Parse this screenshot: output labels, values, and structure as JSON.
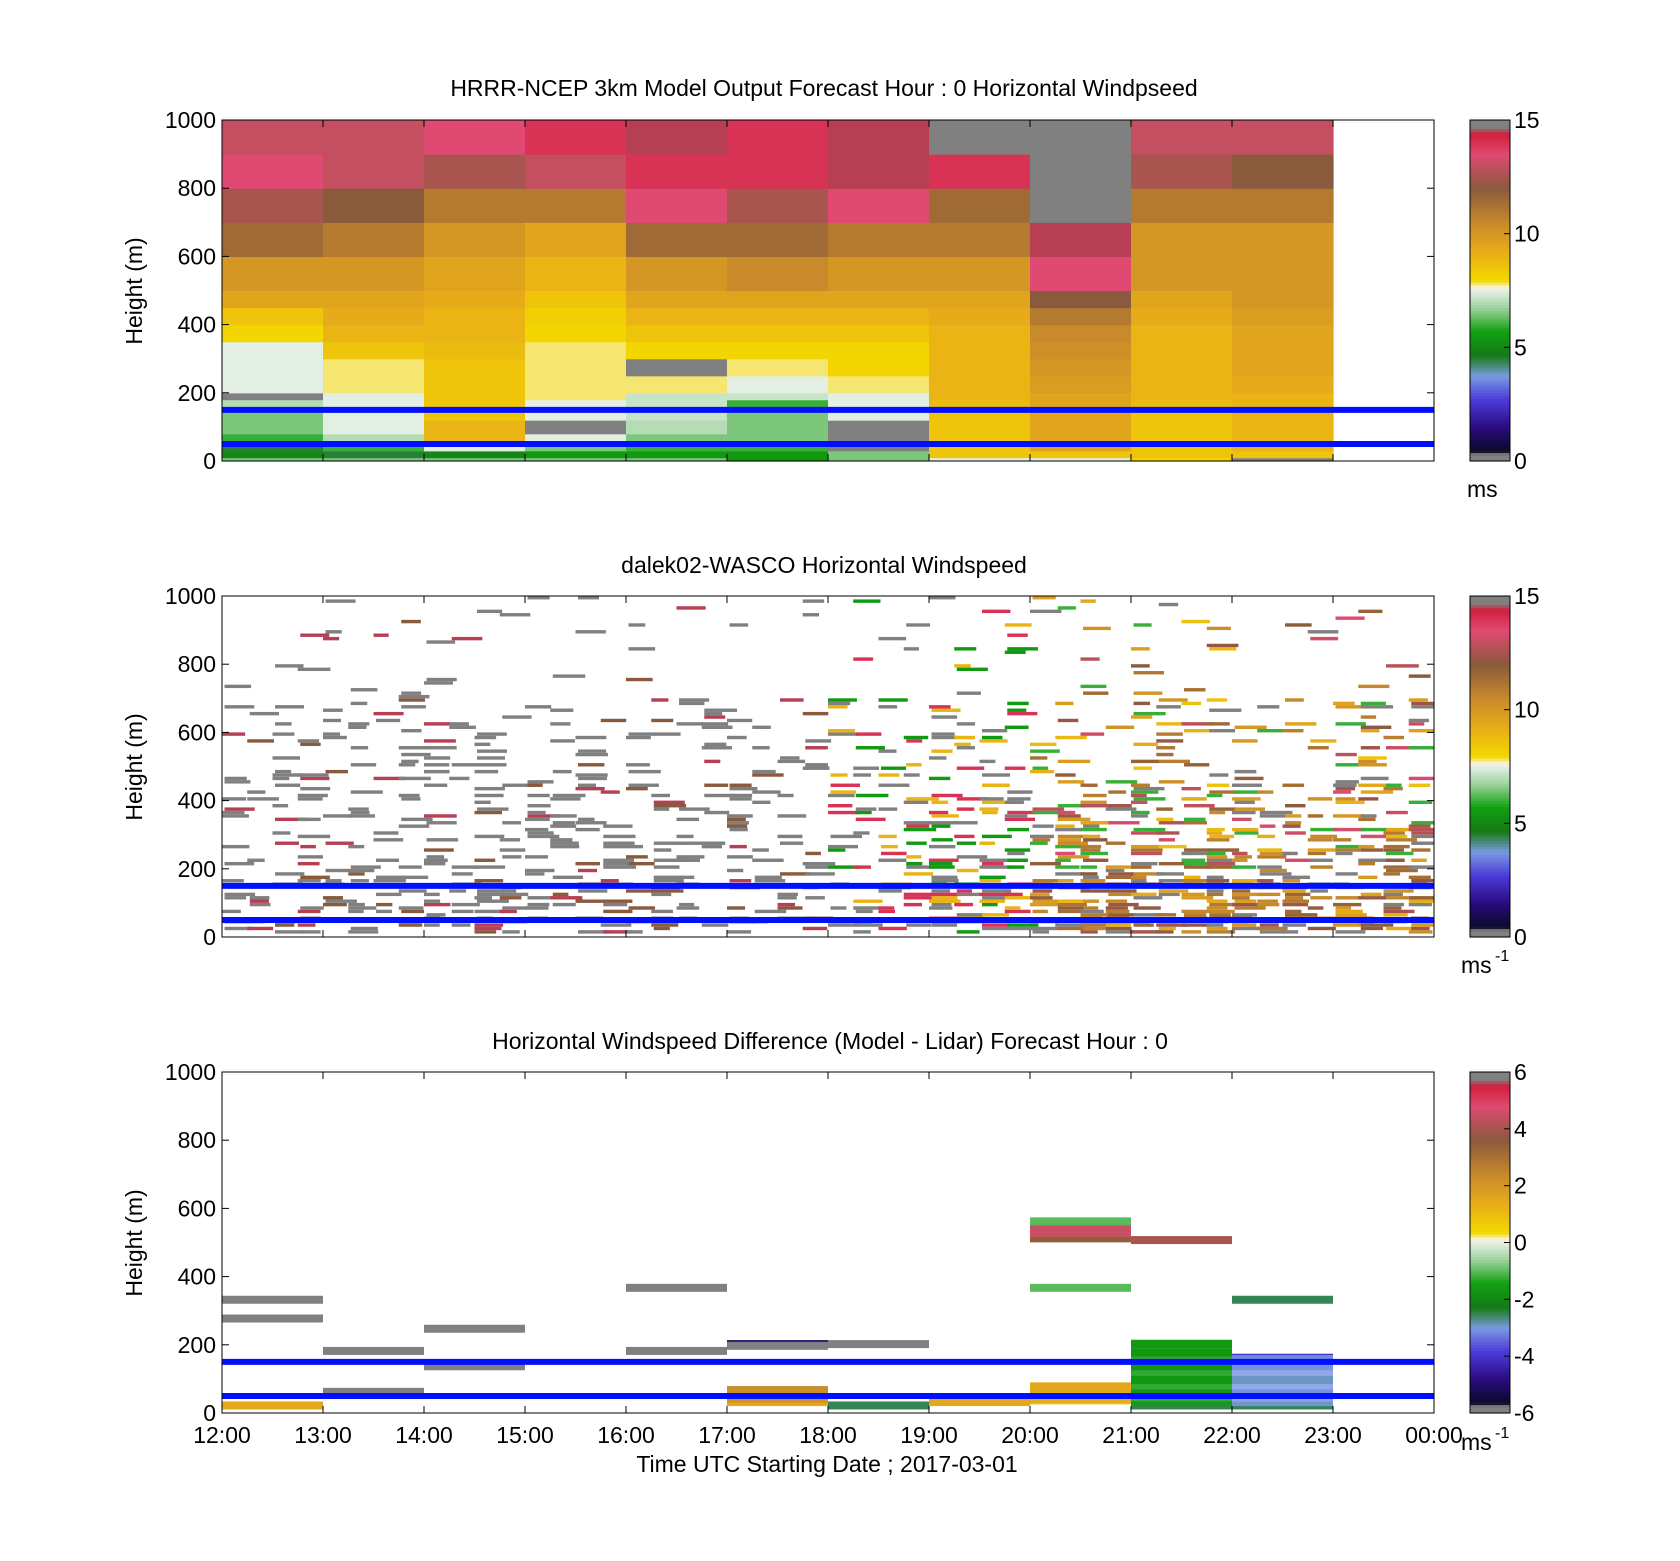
{
  "colors": {
    "band_line": "#0010ff",
    "frame": "#000000",
    "missing_gray": "#808080"
  },
  "colormaps": {
    "speed": {
      "stops": [
        [
          0.0,
          "#808080"
        ],
        [
          0.02,
          "#808080"
        ],
        [
          0.03,
          "#0a0a2a"
        ],
        [
          0.1,
          "#2a0a80"
        ],
        [
          0.18,
          "#4a3ad8"
        ],
        [
          0.25,
          "#7a9ae0"
        ],
        [
          0.31,
          "#167a16"
        ],
        [
          0.38,
          "#10a010"
        ],
        [
          0.45,
          "#9ed39e"
        ],
        [
          0.5,
          "#e4efe4"
        ],
        [
          0.51,
          "#f7f3e4"
        ],
        [
          0.53,
          "#f3d800"
        ],
        [
          0.62,
          "#e6aa1a"
        ],
        [
          0.7,
          "#c88a2a"
        ],
        [
          0.8,
          "#8a5a3c"
        ],
        [
          0.9,
          "#e04a72"
        ],
        [
          0.96,
          "#d21f3c"
        ],
        [
          0.98,
          "#808080"
        ],
        [
          1.0,
          "#808080"
        ]
      ]
    }
  },
  "panels": [
    {
      "title": "HRRR-NCEP 3km Model Output   Forecast Hour : 0 Horizontal Windpseed",
      "ylabel": "Height (m)",
      "yticks": [
        "0",
        "200",
        "400",
        "600",
        "800",
        "1000"
      ],
      "colorbar": {
        "ticks": [
          "0",
          "5",
          "10",
          "15"
        ],
        "min": 0,
        "max": 15,
        "unit": "ms",
        "unit_sup": ""
      },
      "bands": [
        50,
        150
      ]
    },
    {
      "title": "dalek02-WASCO  Horizontal Windspeed",
      "ylabel": "Height (m)",
      "yticks": [
        "0",
        "200",
        "400",
        "600",
        "800",
        "1000"
      ],
      "colorbar": {
        "ticks": [
          "0",
          "5",
          "10",
          "15"
        ],
        "min": 0,
        "max": 15,
        "unit": "ms",
        "unit_sup": "-1"
      },
      "bands": [
        50,
        150
      ]
    },
    {
      "title": "Horizontal Windspeed Difference (Model - Lidar) Forecast Hour : 0",
      "ylabel": "Height (m)",
      "yticks": [
        "0",
        "200",
        "400",
        "600",
        "800",
        "1000"
      ],
      "colorbar": {
        "ticks": [
          "-6",
          "-4",
          "-2",
          "0",
          "2",
          "4",
          "6"
        ],
        "min": -6,
        "max": 6,
        "unit": "ms",
        "unit_sup": "-1"
      },
      "bands": [
        50,
        150
      ]
    }
  ],
  "xaxis": {
    "ticks": [
      "12:00",
      "13:00",
      "14:00",
      "15:00",
      "16:00",
      "17:00",
      "18:00",
      "19:00",
      "20:00",
      "21:00",
      "22:00",
      "23:00",
      "00:00"
    ],
    "label": "Time UTC  Starting Date ; 2017-03-01"
  },
  "chart_data": [
    {
      "type": "heatmap",
      "title": "HRRR-NCEP 3km Model Output   Forecast Hour : 0 Horizontal Windpseed",
      "ylabel": "Height (m)",
      "x_hours": [
        "12:00",
        "13:00",
        "14:00",
        "15:00",
        "16:00",
        "17:00",
        "18:00",
        "19:00",
        "20:00",
        "21:00",
        "22:00"
      ],
      "height_levels_m": [
        0,
        10,
        30,
        50,
        80,
        120,
        150,
        180,
        200,
        250,
        300,
        350,
        400,
        450,
        500,
        600,
        700,
        800,
        900
      ],
      "values_ms": [
        [
          6.5,
          5,
          4.5,
          6,
          6.5,
          6.5,
          7,
          0,
          7.5,
          7.5,
          7.5,
          8,
          8.5,
          9.5,
          10,
          11.5,
          12.5,
          13.5,
          13
        ],
        [
          6.5,
          4.5,
          6,
          7,
          7.5,
          7.5,
          7.5,
          7.5,
          7.8,
          7.8,
          8.5,
          9,
          9.3,
          9.5,
          10,
          11,
          12,
          13,
          13
        ],
        [
          6.5,
          5,
          7.5,
          9,
          9,
          8.5,
          8.5,
          8.5,
          8.5,
          8.5,
          8.8,
          9,
          9,
          9.3,
          9.5,
          10,
          11,
          12.5,
          13.5
        ],
        [
          6.5,
          5.5,
          6.5,
          7.5,
          0,
          7.5,
          7.5,
          7.8,
          7.8,
          7.8,
          7.8,
          8,
          8.2,
          8.5,
          9,
          9.5,
          11,
          13,
          14
        ],
        [
          6.5,
          5.5,
          6,
          6.5,
          7,
          7.2,
          7.2,
          7.2,
          7.8,
          0,
          8,
          8.5,
          9,
          9.5,
          10,
          11.5,
          13.5,
          14,
          14.5
        ],
        [
          5.5,
          5.5,
          6,
          6.5,
          6.5,
          6.5,
          6,
          7.2,
          7.5,
          7.8,
          8,
          8.5,
          9,
          9.5,
          10.5,
          11.5,
          12.5,
          14,
          14
        ],
        [
          6.5,
          6.5,
          0,
          0,
          0,
          7.5,
          7.5,
          7.5,
          7.8,
          8,
          8,
          8.5,
          9,
          9.5,
          10,
          11,
          13.5,
          14.5,
          14.5
        ],
        [
          7.5,
          8.5,
          8.5,
          8.5,
          8.5,
          8.5,
          8.8,
          9,
          9,
          9,
          9,
          9,
          9.3,
          9.5,
          10,
          11,
          11.5,
          14,
          0
        ],
        [
          7.5,
          8.5,
          9.5,
          9.5,
          9.5,
          9.5,
          9.5,
          9.5,
          9.8,
          10,
          10.3,
          10.5,
          11,
          12,
          13.5,
          14.5,
          0,
          0,
          0
        ],
        [
          8,
          8.5,
          8.5,
          8.5,
          8.5,
          8.5,
          8.8,
          9,
          9,
          9,
          9,
          9,
          9.3,
          9.5,
          10,
          10,
          11,
          12.5,
          13
        ],
        [
          0,
          8.5,
          9,
          9,
          9,
          9,
          9,
          9,
          9.3,
          9.5,
          9.5,
          9.5,
          9.8,
          10,
          10,
          10,
          11,
          12,
          13
        ]
      ]
    },
    {
      "type": "heatmap",
      "title": "dalek02-WASCO  Horizontal Windspeed",
      "ylabel": "Height (m)",
      "x_range": [
        "12:00",
        "00:00"
      ],
      "y_range_m": [
        0,
        1000
      ],
      "description_values": "sparse lidar retrievals 0-1000 m; gray = speeds above 15 ms-1 concentrated 12:00-18:00 below 700 m; 8-11 ms-1 (yellow-brown) below 400 m after 19:00",
      "colorbar_range": [
        0,
        15
      ]
    },
    {
      "type": "heatmap",
      "title": "Horizontal Windspeed Difference (Model - Lidar) Forecast Hour : 0",
      "ylabel": "Height (m)",
      "colorbar_range": [
        -6,
        6
      ],
      "segments": [
        {
          "x0": "12:00",
          "x1": "13:00",
          "y_m": 25,
          "value": 1.5
        },
        {
          "x0": "12:00",
          "x1": "13:00",
          "y_m": 280,
          "value": 6
        },
        {
          "x0": "12:00",
          "x1": "13:00",
          "y_m": 335,
          "value": 6
        },
        {
          "x0": "13:00",
          "x1": "14:00",
          "y_m": 65,
          "value": 6
        },
        {
          "x0": "13:00",
          "x1": "14:00",
          "y_m": 185,
          "value": 6
        },
        {
          "x0": "14:00",
          "x1": "15:00",
          "y_m": 140,
          "value": 6
        },
        {
          "x0": "14:00",
          "x1": "15:00",
          "y_m": 250,
          "value": 6
        },
        {
          "x0": "16:00",
          "x1": "17:00",
          "y_m": 185,
          "value": 6
        },
        {
          "x0": "16:00",
          "x1": "17:00",
          "y_m": 370,
          "value": 6
        },
        {
          "x0": "17:00",
          "x1": "18:00",
          "y_m": 205,
          "value": -5
        },
        {
          "x0": "17:00",
          "x1": "18:00",
          "y_m": 200,
          "value": 6
        },
        {
          "x0": "18:00",
          "x1": "19:00",
          "y_m": 205,
          "value": 6
        },
        {
          "x0": "17:00",
          "x1": "18:00",
          "y_m": 35,
          "value": 1.5
        },
        {
          "x0": "17:00",
          "x1": "18:00",
          "y_m": 55,
          "value": 2
        },
        {
          "x0": "17:00",
          "x1": "18:00",
          "y_m": 70,
          "value": 2.5
        },
        {
          "x0": "18:00",
          "x1": "19:00",
          "y_m": 25,
          "value": -2.5
        },
        {
          "x0": "19:00",
          "x1": "20:00",
          "y_m": 35,
          "value": 1.5
        },
        {
          "x0": "20:00",
          "x1": "21:00",
          "y_m": 40,
          "value": 1
        },
        {
          "x0": "20:00",
          "x1": "21:00",
          "y_m": 60,
          "value": 1.5
        },
        {
          "x0": "20:00",
          "x1": "21:00",
          "y_m": 80,
          "value": 1.5
        },
        {
          "x0": "20:00",
          "x1": "21:00",
          "y_m": 370,
          "value": -1
        },
        {
          "x0": "20:00",
          "x1": "21:00",
          "y_m": 515,
          "value": 3.5
        },
        {
          "x0": "20:00",
          "x1": "21:00",
          "y_m": 530,
          "value": 4.5
        },
        {
          "x0": "20:00",
          "x1": "21:00",
          "y_m": 550,
          "value": 4.5
        },
        {
          "x0": "20:00",
          "x1": "21:00",
          "y_m": 565,
          "value": -1
        },
        {
          "x0": "21:00",
          "x1": "22:00",
          "y_m": 510,
          "value": 4
        },
        {
          "x0": "21:00",
          "x1": "22:00",
          "y_m": 25,
          "value": -2.5
        },
        {
          "x0": "21:00",
          "x1": "22:00",
          "y_m": 60,
          "value": -1.5
        },
        {
          "x0": "21:00",
          "x1": "22:00",
          "y_m": 100,
          "value": -1.5
        },
        {
          "x0": "21:00",
          "x1": "22:00",
          "y_m": 140,
          "value": -1.5
        },
        {
          "x0": "21:00",
          "x1": "22:00",
          "y_m": 180,
          "value": -1.5
        },
        {
          "x0": "21:00",
          "x1": "22:00",
          "y_m": 205,
          "value": -1.5
        },
        {
          "x0": "22:00",
          "x1": "23:00",
          "y_m": 335,
          "value": -2.5
        },
        {
          "x0": "22:00",
          "x1": "23:00",
          "y_m": 25,
          "value": -2.5
        },
        {
          "x0": "22:00",
          "x1": "23:00",
          "y_m": 60,
          "value": -3.5
        },
        {
          "x0": "22:00",
          "x1": "23:00",
          "y_m": 100,
          "value": -2
        },
        {
          "x0": "22:00",
          "x1": "23:00",
          "y_m": 140,
          "value": -3.5
        },
        {
          "x0": "22:00",
          "x1": "23:00",
          "y_m": 165,
          "value": -4
        }
      ]
    }
  ]
}
